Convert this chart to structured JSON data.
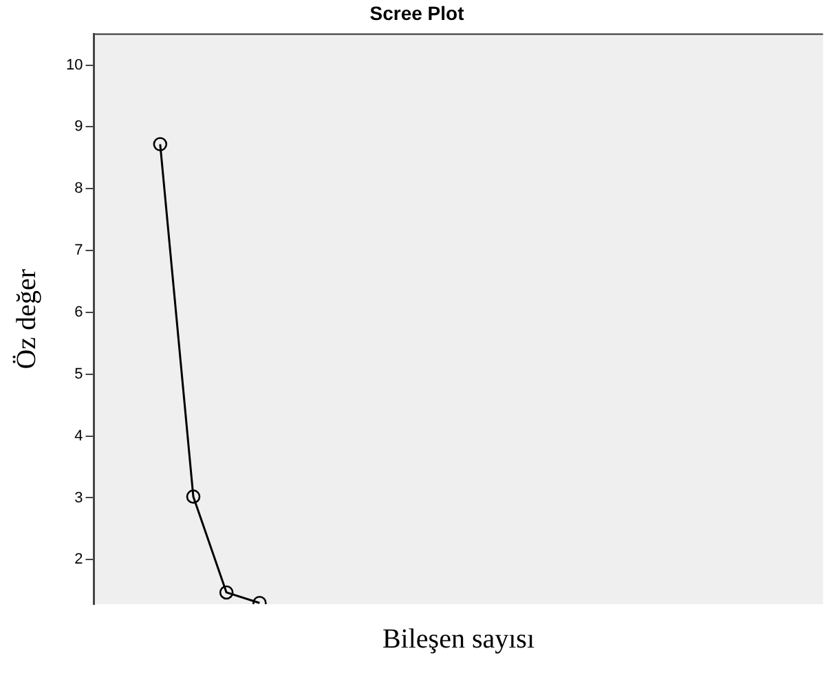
{
  "chart_data": {
    "type": "line",
    "title": "Scree Plot",
    "xlabel": "Bileşen sayısı",
    "ylabel": "Öz değer",
    "categories": [
      null,
      null,
      null,
      null,
      null,
      null,
      null,
      null,
      null,
      null,
      null,
      null,
      null,
      null,
      null,
      null,
      null,
      null,
      null,
      null,
      null,
      null,
      null
    ],
    "series": [
      {
        "color": "#000000",
        "values": [
          null,
          null,
          8.72,
          3.02,
          1.47,
          1.3,
          null,
          null,
          null,
          null,
          null,
          null,
          null,
          null,
          null,
          null,
          null,
          null,
          null,
          null,
          null,
          null,
          null
        ]
      }
    ],
    "ylim": [
      1.28,
      10.5
    ],
    "yticks": [
      2,
      3,
      4,
      5,
      6,
      7,
      8,
      9,
      10
    ],
    "grid": false,
    "legend": false,
    "marker": "circle",
    "line_style": "solid",
    "tick_labels": "y"
  }
}
